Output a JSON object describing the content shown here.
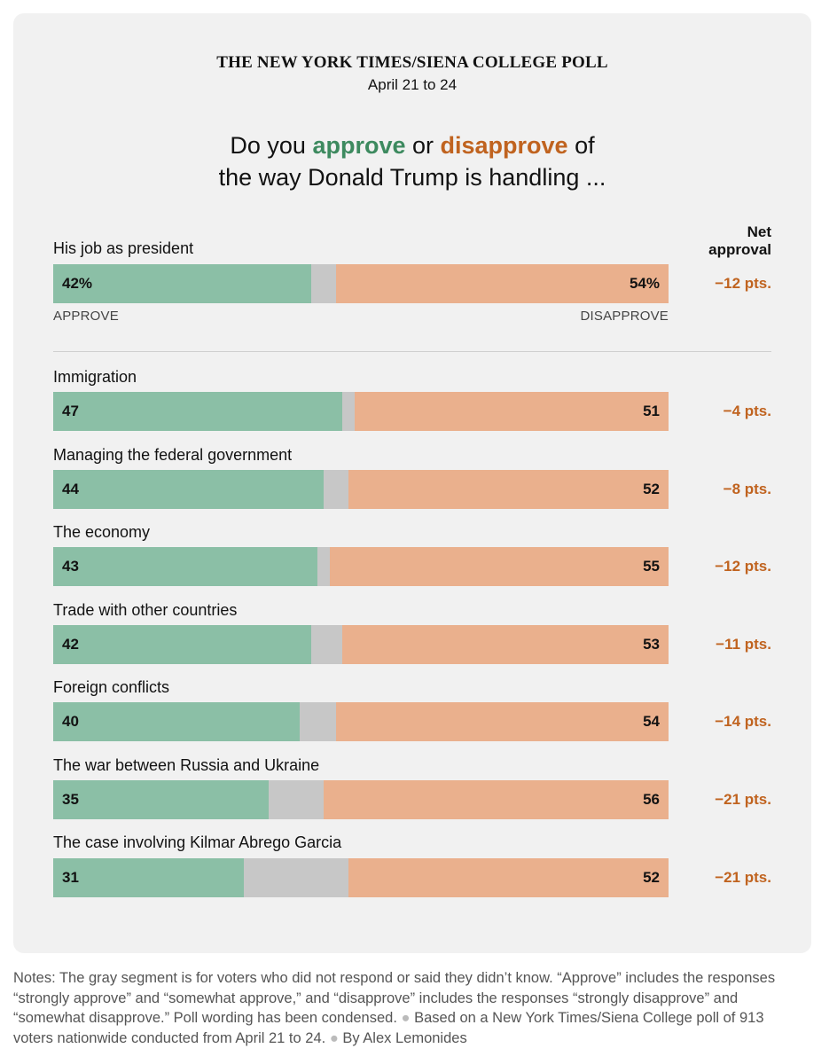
{
  "header": {
    "source": "THE NEW YORK TIMES/SIENA COLLEGE POLL",
    "dates": "April 21 to 24",
    "question_part1": "Do you ",
    "approve_word": "approve",
    "question_or": " or ",
    "disapprove_word": "disapprove",
    "question_part2": " of",
    "question_line2": "the way Donald Trump is handling ...",
    "net_header_line1": "Net",
    "net_header_line2": "approval",
    "approve_axis_label": "APPROVE",
    "disapprove_axis_label": "DISAPPROVE"
  },
  "chart_data": {
    "type": "bar",
    "orientation": "horizontal-stacked",
    "categories": [
      "His job as president",
      "Immigration",
      "Managing the federal government",
      "The economy",
      "Trade with other countries",
      "Foreign conflicts",
      "The war between Russia and Ukraine",
      "The case involving Kilmar Abrego Garcia"
    ],
    "approve_labels": [
      "42%",
      "47",
      "44",
      "43",
      "42",
      "40",
      "35",
      "31"
    ],
    "disapprove_labels": [
      "54%",
      "51",
      "52",
      "55",
      "53",
      "54",
      "56",
      "52"
    ],
    "net_labels": [
      "−12 pts.",
      "−4 pts.",
      "−8 pts.",
      "−12 pts.",
      "−11 pts.",
      "−14 pts.",
      "−21 pts.",
      "−21 pts."
    ],
    "series": [
      {
        "values": [
          42,
          47,
          44,
          43,
          42,
          40,
          35,
          31
        ],
        "color": "#8bbfa6"
      },
      {
        "values": [
          4,
          2,
          4,
          2,
          5,
          6,
          9,
          17
        ],
        "color": "#c7c7c7"
      },
      {
        "values": [
          54,
          51,
          52,
          55,
          53,
          54,
          56,
          52
        ],
        "color": "#eab08d"
      }
    ],
    "xlim": [
      0,
      100
    ]
  },
  "notes": {
    "text1": "Notes: The gray segment is for voters who did not respond or said they didn’t know. “Approve” includes the responses “strongly approve” and “somewhat approve,” and “disapprove” includes the responses “strongly disapprove” and “somewhat disapprove.” Poll wording has been condensed.",
    "text2": "Based on a New York Times/Siena College poll of 913 voters nationwide conducted from April 21 to 24.",
    "text3": "By Alex Lemonides"
  }
}
